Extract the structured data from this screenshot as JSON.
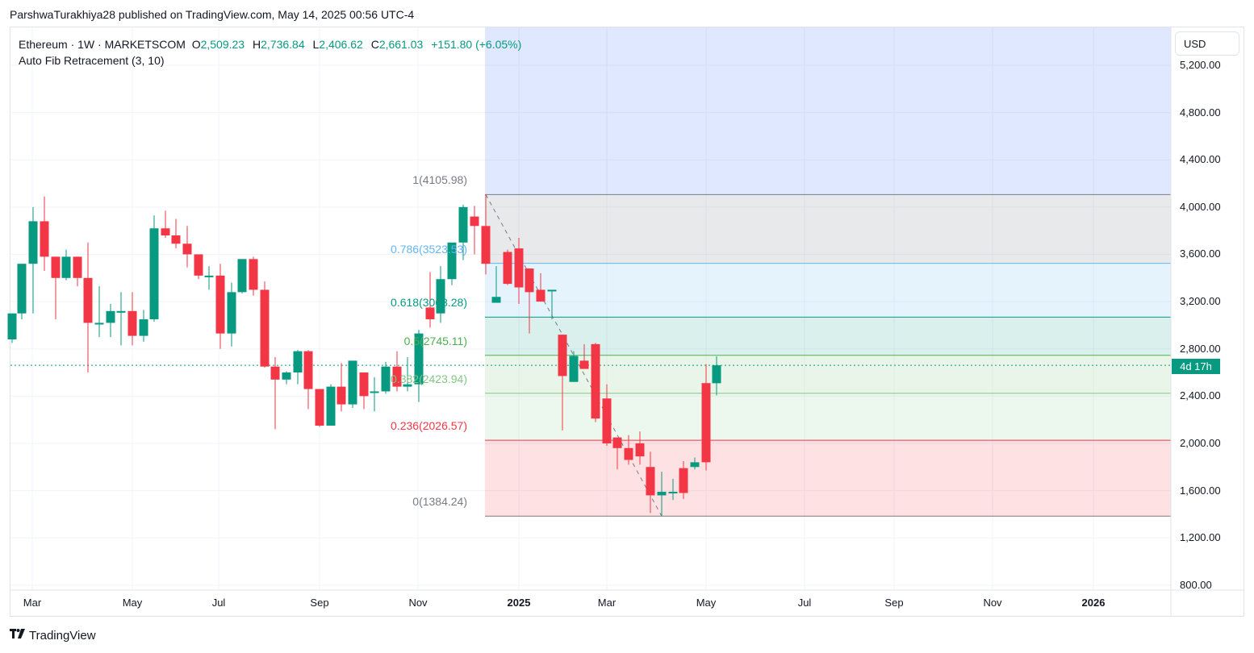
{
  "publisher": "ParshwaTurakhiya28 published on TradingView.com, May 14, 2025 00:56 UTC-4",
  "legend": {
    "symbol": "Ethereum · 1W · MARKETSCOM",
    "o_label": "O",
    "o": "2,509.23",
    "h_label": "H",
    "h": "2,736.84",
    "l_label": "L",
    "l": "2,406.62",
    "c_label": "C",
    "c": "2,661.03",
    "change": "+151.80 (+6.05%)",
    "indicator": "Auto Fib Retracement (3, 10)"
  },
  "currency": "USD",
  "countdown": "4d 17h",
  "footer": {
    "logo_mark": "17",
    "logo_text": "TradingView"
  },
  "colors": {
    "up": "#089981",
    "down": "#f23645"
  },
  "chart_data": {
    "type": "candlestick",
    "title": "Ethereum · 1W · MARKETSCOM",
    "ylabel": "USD",
    "ylim": [
      600,
      5400
    ],
    "y_ticks": [
      "5,200.00",
      "4,800.00",
      "4,400.00",
      "4,000.00",
      "3,600.00",
      "3,200.00",
      "2,800.00",
      "2,400.00",
      "2,000.00",
      "1,600.00",
      "1,200.00",
      "800.00"
    ],
    "x_ticks": [
      "Mar",
      "May",
      "Jul",
      "Sep",
      "Nov",
      "2025",
      "Mar",
      "May",
      "Jul",
      "Sep",
      "Nov",
      "2026"
    ],
    "last_price": 2661.03,
    "fib_levels": [
      {
        "ratio": "1",
        "price": "4105.98",
        "label": "1(4105.98)",
        "color": "#787b86"
      },
      {
        "ratio": "0.786",
        "price": "3523.53",
        "label": "0.786(3523.53)",
        "color": "#64b5f6"
      },
      {
        "ratio": "0.618",
        "price": "3068.28",
        "label": "0.618(3068.28)",
        "color": "#089981"
      },
      {
        "ratio": "0.5",
        "price": "2745.11",
        "label": "0.5(2745.11)",
        "color": "#4caf50"
      },
      {
        "ratio": "0.382",
        "price": "2423.94",
        "label": "0.382(2423.94)",
        "color": "#81c784"
      },
      {
        "ratio": "0.236",
        "price": "2026.57",
        "label": "0.236(2026.57)",
        "color": "#f23645"
      },
      {
        "ratio": "0",
        "price": "1384.24",
        "label": "0(1384.24)",
        "color": "#787b86"
      }
    ],
    "candles": [
      [
        15,
        2880,
        3100,
        2850,
        3100
      ],
      [
        27,
        3100,
        3520,
        3050,
        3520
      ],
      [
        41,
        3520,
        4000,
        3100,
        3880
      ],
      [
        55,
        3880,
        4090,
        3460,
        3580
      ],
      [
        69,
        3580,
        3580,
        3050,
        3400
      ],
      [
        82,
        3400,
        3640,
        3380,
        3580
      ],
      [
        96,
        3580,
        3580,
        3330,
        3400
      ],
      [
        109,
        3400,
        3700,
        2600,
        3020
      ],
      [
        123,
        3020,
        3330,
        2900,
        3020
      ],
      [
        137,
        3020,
        3180,
        2900,
        3120
      ],
      [
        150,
        3120,
        3280,
        2830,
        3120
      ],
      [
        164,
        3120,
        3280,
        2830,
        2910
      ],
      [
        178,
        2910,
        3130,
        2860,
        3050
      ],
      [
        191,
        3050,
        3930,
        3030,
        3820
      ],
      [
        205,
        3820,
        3970,
        3740,
        3760
      ],
      [
        218,
        3760,
        3900,
        3650,
        3690
      ],
      [
        232,
        3690,
        3840,
        3490,
        3600
      ],
      [
        246,
        3600,
        3500,
        3390,
        3420
      ],
      [
        259,
        3420,
        3500,
        3300,
        3420
      ],
      [
        273,
        3420,
        3520,
        2800,
        2930
      ],
      [
        287,
        2930,
        3360,
        2820,
        3280
      ],
      [
        300,
        3280,
        3550,
        3270,
        3560
      ],
      [
        314,
        3560,
        3580,
        3250,
        3300
      ],
      [
        328,
        3300,
        3370,
        2640,
        2650
      ],
      [
        341,
        2650,
        2730,
        2120,
        2540
      ],
      [
        355,
        2540,
        2610,
        2500,
        2600
      ],
      [
        369,
        2600,
        2790,
        2500,
        2780
      ],
      [
        382,
        2780,
        2790,
        2290,
        2460
      ],
      [
        396,
        2460,
        2450,
        2140,
        2150
      ],
      [
        410,
        2150,
        2500,
        2200,
        2480
      ],
      [
        423,
        2480,
        2680,
        2270,
        2330
      ],
      [
        437,
        2330,
        2570,
        2300,
        2700
      ],
      [
        451,
        2600,
        2600,
        2290,
        2400
      ],
      [
        464,
        2430,
        2560,
        2270,
        2440
      ],
      [
        478,
        2440,
        2690,
        2420,
        2650
      ],
      [
        492,
        2650,
        2780,
        2440,
        2480
      ],
      [
        505,
        2480,
        2730,
        2440,
        2500
      ],
      [
        519,
        2500,
        2960,
        2350,
        2930
      ],
      [
        533,
        3150,
        3450,
        2980,
        3050
      ],
      [
        546,
        3100,
        3500,
        3020,
        3390
      ],
      [
        560,
        3390,
        3600,
        3340,
        3700
      ],
      [
        574,
        3700,
        4020,
        3550,
        4000
      ],
      [
        588,
        3920,
        4010,
        3600,
        3840
      ],
      [
        602,
        3840,
        4106,
        3430,
        3520
      ],
      [
        615,
        3190,
        3500,
        3220,
        3240
      ],
      [
        629,
        3620,
        3640,
        3340,
        3350
      ],
      [
        643,
        3650,
        3740,
        3180,
        3320
      ],
      [
        656,
        3480,
        3480,
        2930,
        3280
      ],
      [
        670,
        3300,
        3440,
        3200,
        3200
      ],
      [
        684,
        3300,
        3300,
        3050,
        3300
      ],
      [
        697,
        2920,
        2920,
        2110,
        2570
      ],
      [
        711,
        2520,
        2780,
        2520,
        2740
      ],
      [
        724,
        2700,
        2840,
        2650,
        2630
      ],
      [
        738,
        2840,
        2850,
        2180,
        2210
      ],
      [
        752,
        2380,
        2500,
        1980,
        2000
      ],
      [
        765,
        2050,
        2050,
        1780,
        1960
      ],
      [
        779,
        1960,
        2070,
        1820,
        1860
      ],
      [
        793,
        2000,
        2100,
        1820,
        1890
      ],
      [
        806,
        1800,
        1930,
        1410,
        1560
      ],
      [
        820,
        1560,
        1760,
        1385,
        1590
      ],
      [
        834,
        1590,
        1700,
        1520,
        1590
      ],
      [
        847,
        1790,
        1850,
        1530,
        1580
      ],
      [
        861,
        1800,
        1880,
        1780,
        1840
      ],
      [
        875,
        2510,
        2670,
        1770,
        1840
      ],
      [
        888,
        2509,
        2737,
        2407,
        2661
      ]
    ]
  }
}
